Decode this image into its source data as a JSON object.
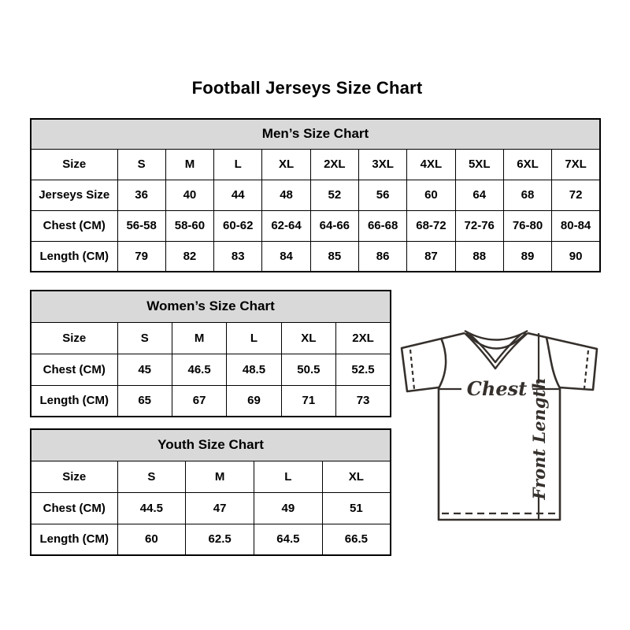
{
  "page": {
    "title": "Football Jerseys Size Chart"
  },
  "colors": {
    "background": "#ffffff",
    "table_border": "#000000",
    "table_header_bg": "#d9d9d9",
    "text": "#000000",
    "jersey_line": "#35302c"
  },
  "tables": {
    "mens": {
      "title": "Men’s Size Chart",
      "rows": [
        {
          "label": "Size",
          "values": [
            "S",
            "M",
            "L",
            "XL",
            "2XL",
            "3XL",
            "4XL",
            "5XL",
            "6XL",
            "7XL"
          ]
        },
        {
          "label": "Jerseys Size",
          "values": [
            "36",
            "40",
            "44",
            "48",
            "52",
            "56",
            "60",
            "64",
            "68",
            "72"
          ]
        },
        {
          "label": "Chest (CM)",
          "values": [
            "56-58",
            "58-60",
            "60-62",
            "62-64",
            "64-66",
            "66-68",
            "68-72",
            "72-76",
            "76-80",
            "80-84"
          ]
        },
        {
          "label": "Length (CM)",
          "values": [
            "79",
            "82",
            "83",
            "84",
            "85",
            "86",
            "87",
            "88",
            "89",
            "90"
          ]
        }
      ]
    },
    "womens": {
      "title": "Women’s Size Chart",
      "rows": [
        {
          "label": "Size",
          "values": [
            "S",
            "M",
            "L",
            "XL",
            "2XL"
          ]
        },
        {
          "label": "Chest (CM)",
          "values": [
            "45",
            "46.5",
            "48.5",
            "50.5",
            "52.5"
          ]
        },
        {
          "label": "Length (CM)",
          "values": [
            "65",
            "67",
            "69",
            "71",
            "73"
          ]
        }
      ]
    },
    "youth": {
      "title": "Youth Size Chart",
      "rows": [
        {
          "label": "Size",
          "values": [
            "S",
            "M",
            "L",
            "XL"
          ]
        },
        {
          "label": "Chest (CM)",
          "values": [
            "44.5",
            "47",
            "49",
            "51"
          ]
        },
        {
          "label": "Length (CM)",
          "values": [
            "60",
            "62.5",
            "64.5",
            "66.5"
          ]
        }
      ]
    }
  },
  "diagram": {
    "chest_label": "Chest",
    "front_length_label": "Front Length"
  },
  "chart_data": [
    {
      "type": "table",
      "title": "Men’s Size Chart",
      "columns": [
        "Size",
        "S",
        "M",
        "L",
        "XL",
        "2XL",
        "3XL",
        "4XL",
        "5XL",
        "6XL",
        "7XL"
      ],
      "rows": [
        [
          "Jerseys Size",
          "36",
          "40",
          "44",
          "48",
          "52",
          "56",
          "60",
          "64",
          "68",
          "72"
        ],
        [
          "Chest (CM)",
          "56-58",
          "58-60",
          "60-62",
          "62-64",
          "64-66",
          "66-68",
          "68-72",
          "72-76",
          "76-80",
          "80-84"
        ],
        [
          "Length (CM)",
          "79",
          "82",
          "83",
          "84",
          "85",
          "86",
          "87",
          "88",
          "89",
          "90"
        ]
      ]
    },
    {
      "type": "table",
      "title": "Women’s Size Chart",
      "columns": [
        "Size",
        "S",
        "M",
        "L",
        "XL",
        "2XL"
      ],
      "rows": [
        [
          "Chest (CM)",
          "45",
          "46.5",
          "48.5",
          "50.5",
          "52.5"
        ],
        [
          "Length (CM)",
          "65",
          "67",
          "69",
          "71",
          "73"
        ]
      ]
    },
    {
      "type": "table",
      "title": "Youth Size Chart",
      "columns": [
        "Size",
        "S",
        "M",
        "L",
        "XL"
      ],
      "rows": [
        [
          "Chest (CM)",
          "44.5",
          "47",
          "49",
          "51"
        ],
        [
          "Length (CM)",
          "60",
          "62.5",
          "64.5",
          "66.5"
        ]
      ]
    }
  ]
}
